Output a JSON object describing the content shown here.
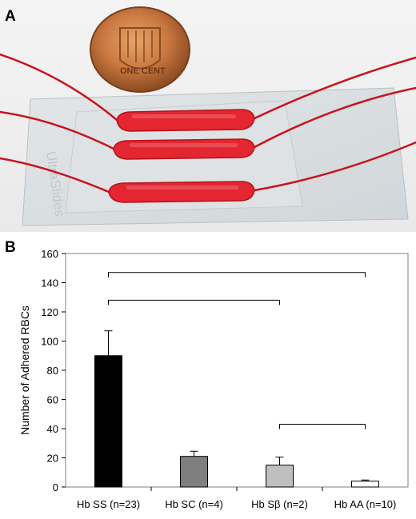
{
  "panel_a": {
    "label": "A",
    "coin_text": "ONE CENT",
    "slide_text": "UltraSlides"
  },
  "panel_b": {
    "label": "B"
  },
  "chart_data": {
    "type": "bar",
    "categories": [
      "Hb SS (n=23)",
      "Hb SC (n=4)",
      "Hb Sβ (n=2)",
      "Hb AA (n=10)"
    ],
    "values": [
      90,
      21,
      15,
      4
    ],
    "errors": [
      17,
      3.5,
      5.5,
      0.8
    ],
    "bar_colors": [
      "#000000",
      "#7f7f7f",
      "#bfbfbf",
      "#ffffff"
    ],
    "title": "",
    "xlabel": "",
    "ylabel": "Number of Adhered RBCs",
    "ylim": [
      0,
      160
    ],
    "yticks": [
      0,
      20,
      40,
      60,
      80,
      100,
      120,
      140,
      160
    ],
    "grid": false,
    "significance_brackets": [
      {
        "from": 0,
        "to": 3,
        "level": 147
      },
      {
        "from": 0,
        "to": 2,
        "level": 128
      },
      {
        "from": 2,
        "to": 3,
        "level": 43
      }
    ]
  }
}
